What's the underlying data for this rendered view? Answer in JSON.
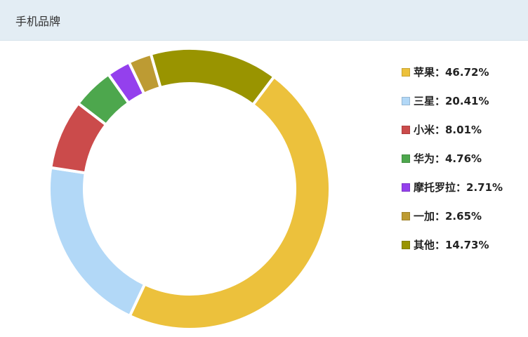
{
  "header": {
    "title": "手机品牌"
  },
  "chart_data": {
    "type": "pie",
    "subtype": "donut",
    "title": "手机品牌",
    "legend_position": "right",
    "start_angle_deg": 37,
    "direction": "clockwise",
    "slices": [
      {
        "name": "苹果",
        "value": 46.72,
        "color": "#ecc13c",
        "legend": "苹果：46.72%"
      },
      {
        "name": "三星",
        "value": 20.41,
        "color": "#b2d8f7",
        "legend": "三星：20.41%"
      },
      {
        "name": "小米",
        "value": 8.01,
        "color": "#cb4b4b",
        "legend": "小米：8.01%"
      },
      {
        "name": "华为",
        "value": 4.76,
        "color": "#4da74d",
        "legend": "华为：4.76%"
      },
      {
        "name": "摩托罗拉",
        "value": 2.71,
        "color": "#9440ed",
        "legend": "摩托罗拉：2.71%"
      },
      {
        "name": "一加",
        "value": 2.65,
        "color": "#bd9b33",
        "legend": "一加：2.65%"
      },
      {
        "name": "其他",
        "value": 14.73,
        "color": "#999400",
        "legend": "其他：14.73%"
      }
    ],
    "draw_order": [
      6,
      0,
      1,
      2,
      3,
      4,
      5
    ]
  }
}
